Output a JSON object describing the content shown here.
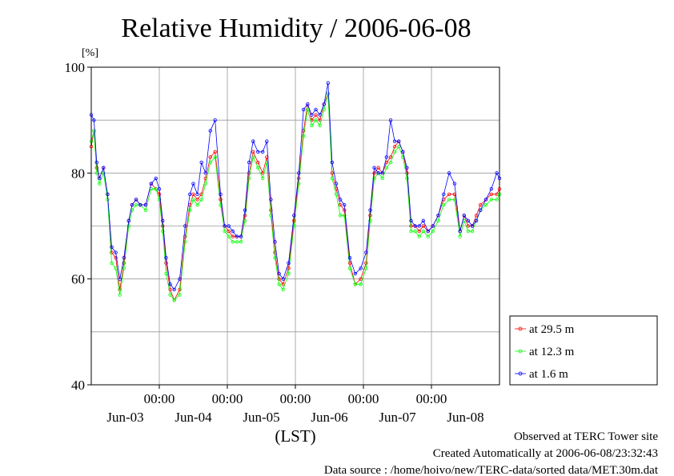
{
  "chart_data": {
    "type": "line",
    "title": "Relative Humidity / 2006-06-08",
    "yunit": "[%]",
    "xlabel": "(LST)",
    "ylim": [
      40,
      100
    ],
    "xlim": [
      0,
      6
    ],
    "yticks": [
      40,
      60,
      80,
      100
    ],
    "grid": true,
    "legend_position": "bottom-right, outside plot",
    "time_ticks": [
      {
        "x": 1,
        "label": "00:00"
      },
      {
        "x": 2,
        "label": "00:00"
      },
      {
        "x": 3,
        "label": "00:00"
      },
      {
        "x": 4,
        "label": "00:00"
      },
      {
        "x": 5,
        "label": "00:00"
      }
    ],
    "date_labels": [
      {
        "x": 0.5,
        "label": "Jun-03"
      },
      {
        "x": 1.5,
        "label": "Jun-04"
      },
      {
        "x": 2.5,
        "label": "Jun-05"
      },
      {
        "x": 3.5,
        "label": "Jun-06"
      },
      {
        "x": 4.5,
        "label": "Jun-07"
      },
      {
        "x": 5.5,
        "label": "Jun-08"
      }
    ],
    "series": [
      {
        "name": "at 29.5 m",
        "color": "#ff0000",
        "x": [
          0.0,
          0.04,
          0.08,
          0.12,
          0.18,
          0.24,
          0.3,
          0.36,
          0.42,
          0.48,
          0.55,
          0.6,
          0.66,
          0.72,
          0.8,
          0.88,
          0.95,
          1.0,
          1.05,
          1.1,
          1.16,
          1.22,
          1.3,
          1.38,
          1.45,
          1.5,
          1.56,
          1.62,
          1.68,
          1.75,
          1.82,
          1.9,
          1.96,
          2.02,
          2.08,
          2.14,
          2.2,
          2.26,
          2.32,
          2.38,
          2.45,
          2.52,
          2.58,
          2.64,
          2.7,
          2.76,
          2.82,
          2.9,
          2.98,
          3.05,
          3.12,
          3.18,
          3.24,
          3.3,
          3.36,
          3.42,
          3.48,
          3.54,
          3.6,
          3.66,
          3.72,
          3.8,
          3.88,
          3.96,
          4.04,
          4.1,
          4.16,
          4.22,
          4.28,
          4.34,
          4.4,
          4.46,
          4.52,
          4.58,
          4.64,
          4.7,
          4.76,
          4.82,
          4.88,
          4.95,
          5.02,
          5.1,
          5.18,
          5.26,
          5.34,
          5.42,
          5.48,
          5.54,
          5.6,
          5.66,
          5.72,
          5.8,
          5.88,
          5.96,
          6.0
        ],
        "values": [
          85,
          88,
          81,
          79,
          81,
          76,
          65,
          64,
          58,
          63,
          71,
          74,
          75,
          74,
          74,
          78,
          77,
          76,
          70,
          63,
          58,
          56,
          58,
          68,
          74,
          76,
          75,
          76,
          79,
          83,
          84,
          75,
          70,
          69,
          68,
          68,
          68,
          72,
          80,
          84,
          82,
          80,
          83,
          73,
          65,
          60,
          59,
          62,
          71,
          79,
          88,
          93,
          90,
          91,
          90,
          93,
          95,
          80,
          77,
          74,
          73,
          63,
          59,
          60,
          63,
          72,
          80,
          81,
          80,
          82,
          83,
          85,
          86,
          84,
          80,
          70,
          70,
          69,
          70,
          69,
          70,
          72,
          75,
          76,
          76,
          69,
          72,
          70,
          70,
          72,
          74,
          75,
          76,
          76,
          77
        ]
      },
      {
        "name": "at 12.3 m",
        "color": "#00ff00",
        "x": [
          0.0,
          0.04,
          0.08,
          0.12,
          0.18,
          0.24,
          0.3,
          0.36,
          0.42,
          0.48,
          0.55,
          0.6,
          0.66,
          0.72,
          0.8,
          0.88,
          0.95,
          1.0,
          1.05,
          1.1,
          1.16,
          1.22,
          1.3,
          1.38,
          1.45,
          1.5,
          1.56,
          1.62,
          1.68,
          1.75,
          1.82,
          1.9,
          1.96,
          2.02,
          2.08,
          2.14,
          2.2,
          2.26,
          2.32,
          2.38,
          2.45,
          2.52,
          2.58,
          2.64,
          2.7,
          2.76,
          2.82,
          2.9,
          2.98,
          3.05,
          3.12,
          3.18,
          3.24,
          3.3,
          3.36,
          3.42,
          3.48,
          3.54,
          3.6,
          3.66,
          3.72,
          3.8,
          3.88,
          3.96,
          4.04,
          4.1,
          4.16,
          4.22,
          4.28,
          4.34,
          4.4,
          4.46,
          4.52,
          4.58,
          4.64,
          4.7,
          4.76,
          4.82,
          4.88,
          4.95,
          5.02,
          5.1,
          5.18,
          5.26,
          5.34,
          5.42,
          5.48,
          5.54,
          5.6,
          5.66,
          5.72,
          5.8,
          5.88,
          5.96,
          6.0
        ],
        "values": [
          86,
          88,
          80,
          78,
          80,
          75,
          63,
          62,
          57,
          62,
          70,
          73,
          74,
          74,
          73,
          77,
          77,
          75,
          69,
          61,
          57,
          56,
          57,
          67,
          73,
          75,
          74,
          75,
          78,
          82,
          83,
          74,
          69,
          68,
          67,
          67,
          67,
          71,
          79,
          83,
          81,
          79,
          82,
          72,
          64,
          59,
          58,
          61,
          70,
          78,
          87,
          92,
          89,
          90,
          89,
          92,
          95,
          79,
          76,
          72,
          72,
          62,
          59,
          59,
          62,
          71,
          79,
          80,
          79,
          81,
          82,
          84,
          85,
          83,
          79,
          69,
          69,
          68,
          69,
          68,
          69,
          71,
          74,
          75,
          75,
          68,
          71,
          69,
          69,
          71,
          73,
          74,
          75,
          75,
          76
        ]
      },
      {
        "name": "at 1.6 m",
        "color": "#0000ff",
        "x": [
          0.0,
          0.04,
          0.08,
          0.12,
          0.18,
          0.24,
          0.3,
          0.36,
          0.42,
          0.48,
          0.55,
          0.6,
          0.66,
          0.72,
          0.8,
          0.88,
          0.95,
          1.0,
          1.05,
          1.1,
          1.16,
          1.22,
          1.3,
          1.38,
          1.45,
          1.5,
          1.56,
          1.62,
          1.68,
          1.75,
          1.82,
          1.9,
          1.96,
          2.02,
          2.08,
          2.14,
          2.2,
          2.26,
          2.32,
          2.38,
          2.45,
          2.52,
          2.58,
          2.64,
          2.7,
          2.76,
          2.82,
          2.9,
          2.98,
          3.05,
          3.12,
          3.18,
          3.24,
          3.3,
          3.36,
          3.42,
          3.48,
          3.54,
          3.6,
          3.66,
          3.72,
          3.8,
          3.88,
          3.96,
          4.04,
          4.1,
          4.16,
          4.22,
          4.28,
          4.34,
          4.4,
          4.46,
          4.52,
          4.58,
          4.64,
          4.7,
          4.76,
          4.82,
          4.88,
          4.95,
          5.02,
          5.1,
          5.18,
          5.26,
          5.34,
          5.42,
          5.48,
          5.54,
          5.6,
          5.66,
          5.72,
          5.8,
          5.88,
          5.96,
          6.0
        ],
        "values": [
          91,
          90,
          82,
          79,
          81,
          76,
          66,
          65,
          60,
          64,
          71,
          74,
          75,
          74,
          74,
          78,
          79,
          77,
          71,
          64,
          59,
          58,
          60,
          70,
          76,
          78,
          76,
          82,
          80,
          88,
          90,
          76,
          70,
          70,
          69,
          68,
          68,
          73,
          82,
          86,
          84,
          84,
          86,
          75,
          67,
          61,
          60,
          63,
          72,
          80,
          92,
          93,
          91,
          92,
          91,
          93,
          97,
          82,
          78,
          75,
          74,
          64,
          61,
          62,
          65,
          73,
          81,
          80,
          80,
          83,
          90,
          86,
          86,
          84,
          81,
          71,
          70,
          70,
          71,
          69,
          70,
          72,
          76,
          80,
          78,
          69,
          72,
          71,
          70,
          71,
          73,
          75,
          77,
          80,
          79
        ]
      }
    ]
  },
  "footer": {
    "line1": "Observed at TERC Tower site",
    "line2": "Created Automatically at 2006-06-08/23:32:43",
    "line3": "Data source : /home/hoivo/new/TERC-data/sorted  data/MET.30m.dat"
  }
}
